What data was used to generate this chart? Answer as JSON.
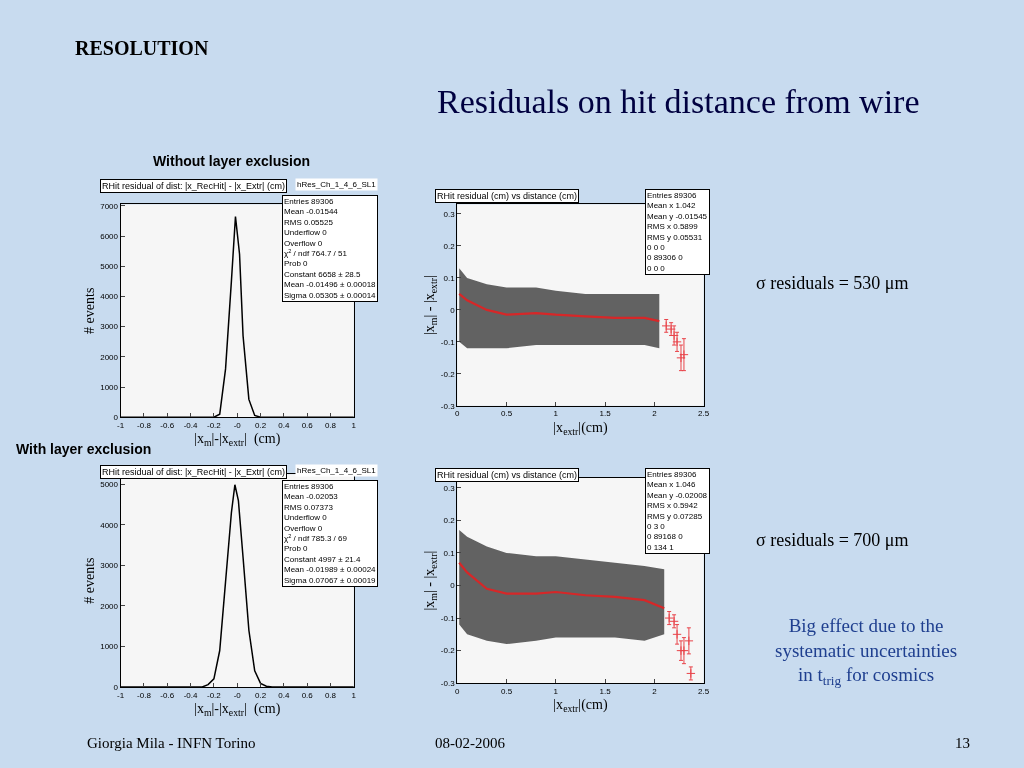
{
  "chart_data": [
    {
      "type": "line",
      "title": "RHit residual of dist: |x_RecHit| - |x_Extr| (cm)",
      "subtitle": "hRes_Ch_1_4_6_SL1",
      "xlabel": "|x$_{m}$|-|x$_{extr}$|  (cm)",
      "ylabel": "# events",
      "xlim": [
        -1,
        1
      ],
      "xticks": [
        -1,
        -0.8,
        -0.6,
        -0.4,
        -0.2,
        {
          "value": 0,
          "label": "-0"
        },
        0.2,
        0.4,
        0.6,
        0.8,
        1
      ],
      "ylim": [
        0,
        7050
      ],
      "yticks": [
        0,
        1000,
        2000,
        3000,
        4000,
        5000,
        6000,
        7000
      ],
      "grid": false,
      "series": [
        {
          "color": "#000000",
          "x": [
            -1,
            -0.2,
            -0.15,
            -0.1,
            -0.05,
            -0.015,
            0.02,
            0.05,
            0.1,
            0.15,
            0.2,
            1
          ],
          "values": [
            0,
            0,
            100,
            1600,
            4500,
            6650,
            5400,
            2700,
            590,
            60,
            0,
            0
          ]
        }
      ],
      "annotations": [
        "Entries 89306\nMean -0.01544\nRMS 0.05525\nUnderflow 0\nOverflow 0\nχ$^{2}$ / ndf 764.7 / 51\nProb 0\nConstant 6658 ± 28.5\nMean -0.01496 ± 0.00018\nSigma 0.05305 ± 0.00014",
        "RESOLUTION",
        "Residuals on hit distance from wire",
        "Without layer exclusion"
      ]
    },
    {
      "type": "line",
      "title": "RHit residual (cm) vs distance (cm)",
      "xlabel": "|x$_{extr}$|(cm)",
      "ylabel": "|x$_{m}$| - |x$_{extr}$|",
      "xlim": [
        0,
        2.5
      ],
      "xticks": [
        0,
        0.5,
        1,
        1.5,
        2,
        2.5
      ],
      "ylim": [
        -0.3,
        0.33
      ],
      "yticks": [
        -0.3,
        -0.2,
        -0.1,
        0,
        0.1,
        0.2,
        0.3
      ],
      "grid": false,
      "series": [
        {
          "type": "line",
          "color": "#d62728",
          "x": [
            0.02,
            0.1,
            0.3,
            0.5,
            0.8,
            1,
            1.3,
            1.6,
            1.9,
            2.05
          ],
          "values": [
            0.05,
            0.03,
            0.0,
            -0.015,
            -0.01,
            -0.015,
            -0.02,
            -0.025,
            -0.025,
            -0.035
          ],
          "lower": [
            -0.1,
            -0.12,
            -0.12,
            -0.12,
            -0.11,
            -0.11,
            -0.11,
            -0.11,
            -0.11,
            -0.12
          ],
          "upper": [
            0.13,
            0.1,
            0.08,
            0.07,
            0.07,
            0.06,
            0.05,
            0.05,
            0.05,
            0.05
          ]
        },
        {
          "type": "scatter",
          "marker": "cross",
          "color": "#e8444a",
          "x": [
            2.12,
            2.17,
            2.2,
            2.23,
            2.27,
            2.3
          ],
          "values": [
            -0.05,
            -0.06,
            -0.08,
            -0.1,
            -0.15,
            -0.14
          ],
          "errors": [
            0.02,
            0.02,
            0.03,
            0.03,
            0.04,
            0.05
          ]
        }
      ],
      "annotations": [
        "Entries 89306\nMean x 1.042\nMean y -0.01545\nRMS x 0.5899\nRMS y 0.05531\n0 0 0\n0 89306 0\n0 0 0",
        "σ residuals = 530 μm"
      ]
    },
    {
      "type": "line",
      "title": "RHit residual of dist: |x_RecHit| - |x_Extr| (cm)",
      "subtitle": "hRes_Ch_1_4_6_SL1",
      "xlabel": "|x$_{m}$|-|x$_{extr}$|  (cm)",
      "ylabel": "# events",
      "xlim": [
        -1,
        1
      ],
      "xticks": [
        -1,
        -0.8,
        -0.6,
        -0.4,
        -0.2,
        {
          "value": 0,
          "label": "-0"
        },
        0.2,
        0.4,
        0.6,
        0.8,
        1
      ],
      "ylim": [
        0,
        5250
      ],
      "yticks": [
        0,
        1000,
        2000,
        3000,
        4000,
        5000
      ],
      "grid": false,
      "series": [
        {
          "color": "#000000",
          "x": [
            -1,
            -0.3,
            -0.25,
            -0.2,
            -0.15,
            -0.1,
            -0.05,
            -0.02,
            0.01,
            0.05,
            0.1,
            0.15,
            0.2,
            0.25,
            0.3,
            1
          ],
          "values": [
            0,
            0,
            60,
            200,
            900,
            2600,
            4300,
            4990,
            4600,
            3200,
            1400,
            400,
            90,
            20,
            0,
            0
          ]
        }
      ],
      "annotations": [
        "Entries 89306\nMean -0.02053\nRMS 0.07373\nUnderflow 0\nOverflow 0\nχ$^{2}$ / ndf 785.3 / 69\nProb 0\nConstant 4997 ± 21.4\nMean -0.01989 ± 0.00024\nSigma 0.07067 ± 0.00019",
        "With layer exclusion"
      ]
    },
    {
      "type": "line",
      "title": "RHit residual (cm) vs distance (cm)",
      "xlabel": "|x$_{extr}$|(cm)",
      "ylabel": "|x$_{m}$| - |x$_{extr}$|",
      "xlim": [
        0,
        2.5
      ],
      "xticks": [
        0,
        0.5,
        1,
        1.5,
        2,
        2.5
      ],
      "ylim": [
        -0.3,
        0.33
      ],
      "yticks": [
        -0.3,
        -0.2,
        -0.1,
        0,
        0.1,
        0.2,
        0.3
      ],
      "grid": false,
      "series": [
        {
          "type": "line",
          "color": "#d62728",
          "x": [
            0.02,
            0.1,
            0.3,
            0.5,
            0.8,
            1,
            1.3,
            1.6,
            1.9,
            2.1
          ],
          "values": [
            0.07,
            0.04,
            -0.01,
            -0.025,
            -0.025,
            -0.02,
            -0.03,
            -0.035,
            -0.045,
            -0.07
          ],
          "lower": [
            -0.12,
            -0.15,
            -0.17,
            -0.18,
            -0.17,
            -0.16,
            -0.16,
            -0.16,
            -0.17,
            -0.15
          ],
          "upper": [
            0.17,
            0.15,
            0.12,
            0.1,
            0.09,
            0.09,
            0.08,
            0.07,
            0.06,
            0.05
          ]
        },
        {
          "type": "scatter",
          "marker": "cross",
          "color": "#e8444a",
          "x": [
            2.15,
            2.2,
            2.23,
            2.27,
            2.3,
            2.35,
            2.37
          ],
          "values": [
            -0.1,
            -0.11,
            -0.15,
            -0.2,
            -0.2,
            -0.17,
            -0.27
          ],
          "errors": [
            0.02,
            0.02,
            0.03,
            0.03,
            0.04,
            0.04,
            0.02
          ]
        }
      ],
      "annotations": [
        "Entries 89306\nMean x 1.046\nMean y -0.02008\nRMS x 0.5942\nRMS y 0.07285\n0 3 0\n0 89168 0\n0 134 1",
        "σ residuals = 700 μm",
        "Big effect due to the\nsystematic uncertainties\nin t$_{trig}$ for cosmics",
        "Giorgia Mila - INFN Torino",
        "08-02-2006",
        "13"
      ]
    }
  ]
}
